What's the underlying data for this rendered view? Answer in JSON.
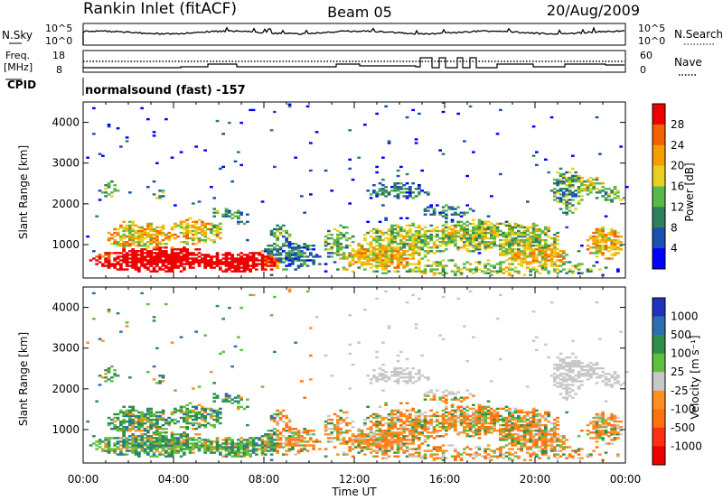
{
  "header": {
    "station": "Rankin Inlet (fitACF)",
    "beam": "Beam 05",
    "date": "20/Aug/2009"
  },
  "noise_panel": {
    "left_label": "N.Sky",
    "right_label": "N.Search",
    "left_ticks": [
      "10^5",
      "10^0"
    ],
    "right_ticks": [
      "10^5",
      "10^0"
    ]
  },
  "freq_panel": {
    "left_label_1": "Freq.",
    "left_label_2": "[MHz]",
    "right_label": "Nave",
    "left_ticks": [
      "18",
      "8"
    ],
    "right_ticks": [
      "60",
      "0"
    ]
  },
  "cpid": {
    "label": "CPID",
    "value": "normalsound (fast) -157"
  },
  "chart_data": [
    {
      "type": "heatmap",
      "name": "Power",
      "ylabel": "Slant Range [km]",
      "ylim": [
        180,
        4500
      ],
      "yticks": [
        "1000",
        "2000",
        "3000",
        "4000"
      ],
      "colorbar_label": "Power [dB]",
      "colorbar_ticks": [
        "28",
        "24",
        "20",
        "16",
        "12",
        "8",
        "4"
      ],
      "colors": [
        "#0000ff",
        "#1b4fb0",
        "#2e7f5c",
        "#58b848",
        "#e8d020",
        "#f5a000",
        "#f56000",
        "#ee0000"
      ]
    },
    {
      "type": "heatmap",
      "name": "Velocity",
      "ylabel": "Slant Range [km]",
      "xlabel": "Time UT",
      "ylim": [
        180,
        4500
      ],
      "yticks": [
        "1000",
        "2000",
        "3000",
        "4000"
      ],
      "xticks": [
        "00:00",
        "04:00",
        "08:00",
        "12:00",
        "16:00",
        "20:00",
        "00:00"
      ],
      "colorbar_label": "Velocity [m s⁻¹]",
      "colorbar_ticks": [
        "1000",
        "500",
        "100",
        "25",
        "-25",
        "-100",
        "-500",
        "-1000"
      ],
      "colors": [
        "#2233bb",
        "#2c6eae",
        "#2f8f4a",
        "#5fc040",
        "#c8c8c8",
        "#ff9020",
        "#ff7010",
        "#ff3010",
        "#ee0000"
      ]
    }
  ]
}
